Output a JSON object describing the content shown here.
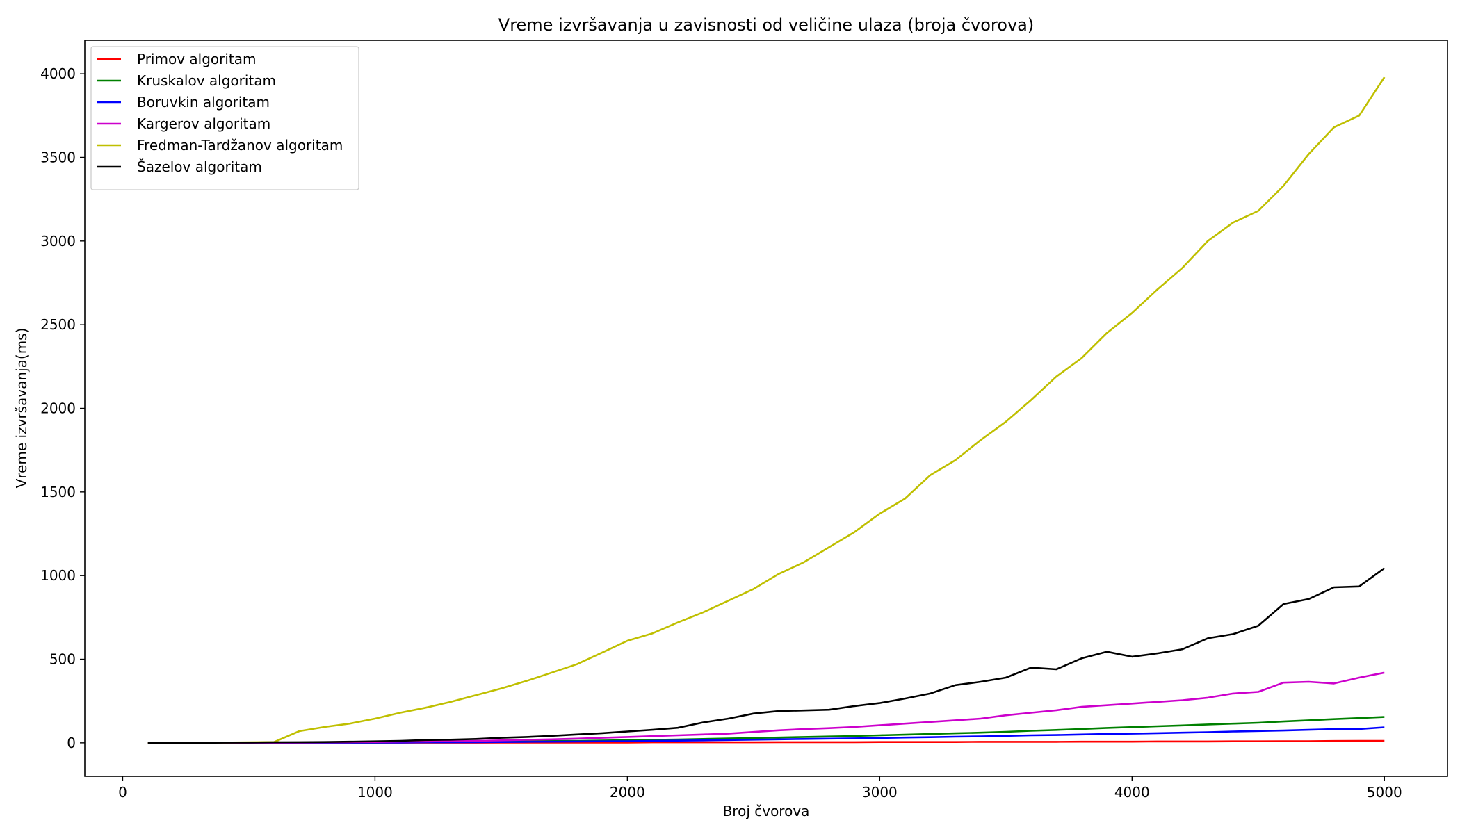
{
  "chart_data": {
    "type": "line",
    "title": "Vreme izvršavanja u zavisnosti od veličine ulaza (broja čvorova)",
    "xlabel": "Broj čvorova",
    "ylabel": "Vreme izvršavanja(ms)",
    "xlim": [
      -150,
      5250
    ],
    "ylim": [
      -200,
      4200
    ],
    "xticks": [
      0,
      1000,
      2000,
      3000,
      4000,
      5000
    ],
    "yticks": [
      0,
      500,
      1000,
      1500,
      2000,
      2500,
      3000,
      3500,
      4000
    ],
    "grid": false,
    "legend_position": "top-left",
    "x": [
      100,
      200,
      300,
      400,
      500,
      600,
      700,
      800,
      900,
      1000,
      1100,
      1200,
      1300,
      1400,
      1500,
      1600,
      1700,
      1800,
      1900,
      2000,
      2100,
      2200,
      2300,
      2400,
      2500,
      2600,
      2700,
      2800,
      2900,
      3000,
      3100,
      3200,
      3300,
      3400,
      3500,
      3600,
      3700,
      3800,
      3900,
      4000,
      4100,
      4200,
      4300,
      4400,
      4500,
      4600,
      4700,
      4800,
      4900,
      5000
    ],
    "series": [
      {
        "name": "Primov algoritam",
        "color": "#ff0000",
        "values": [
          0,
          0,
          0,
          0,
          0,
          0,
          1,
          1,
          1,
          1,
          1,
          1,
          1,
          1,
          2,
          2,
          2,
          2,
          2,
          2,
          3,
          3,
          3,
          3,
          3,
          4,
          4,
          4,
          4,
          5,
          5,
          5,
          5,
          6,
          6,
          6,
          6,
          7,
          7,
          7,
          8,
          8,
          8,
          9,
          9,
          10,
          10,
          11,
          12,
          12
        ]
      },
      {
        "name": "Kruskalov algoritam",
        "color": "#008000",
        "values": [
          0,
          0,
          0,
          0,
          0,
          1,
          1,
          1,
          2,
          2,
          3,
          4,
          5,
          6,
          8,
          9,
          11,
          12,
          14,
          16,
          18,
          20,
          23,
          26,
          29,
          32,
          35,
          38,
          41,
          45,
          49,
          53,
          57,
          61,
          66,
          72,
          77,
          83,
          89,
          94,
          99,
          104,
          110,
          115,
          120,
          128,
          135,
          142,
          148,
          155
        ]
      },
      {
        "name": "Boruvkin algoritam",
        "color": "#0000ff",
        "values": [
          0,
          0,
          0,
          0,
          0,
          0,
          1,
          1,
          1,
          2,
          2,
          3,
          3,
          4,
          5,
          6,
          7,
          8,
          9,
          10,
          12,
          13,
          15,
          17,
          19,
          21,
          23,
          25,
          27,
          29,
          32,
          34,
          37,
          39,
          42,
          45,
          47,
          50,
          53,
          55,
          58,
          61,
          64,
          68,
          71,
          74,
          78,
          82,
          83,
          93
        ]
      },
      {
        "name": "Kargerov algoritam",
        "color": "#cc00cc",
        "values": [
          0,
          0,
          0,
          0,
          1,
          1,
          2,
          3,
          4,
          5,
          7,
          8,
          10,
          12,
          15,
          18,
          21,
          25,
          30,
          35,
          40,
          45,
          50,
          55,
          65,
          75,
          82,
          88,
          95,
          105,
          115,
          125,
          135,
          145,
          165,
          180,
          195,
          215,
          225,
          235,
          245,
          255,
          270,
          295,
          305,
          360,
          365,
          355,
          390,
          420
        ]
      },
      {
        "name": "Fredman-Tardžanov algoritam",
        "color": "#bfbf00",
        "values": [
          0,
          0,
          1,
          2,
          3,
          5,
          70,
          95,
          115,
          145,
          180,
          210,
          245,
          285,
          325,
          370,
          420,
          470,
          540,
          610,
          655,
          720,
          780,
          850,
          920,
          1010,
          1080,
          1170,
          1260,
          1370,
          1460,
          1600,
          1690,
          1810,
          1920,
          2050,
          2190,
          2300,
          2450,
          2570,
          2710,
          2840,
          3000,
          3110,
          3180,
          3330,
          3520,
          3680,
          3750,
          3980
        ]
      },
      {
        "name": "Šazelov algoritam",
        "color": "#000000",
        "values": [
          0,
          0,
          0,
          1,
          2,
          3,
          4,
          5,
          7,
          9,
          12,
          17,
          19,
          23,
          30,
          35,
          42,
          50,
          58,
          68,
          78,
          90,
          122,
          145,
          175,
          190,
          194,
          198,
          220,
          238,
          265,
          295,
          345,
          365,
          390,
          450,
          440,
          505,
          545,
          515,
          535,
          560,
          625,
          650,
          700,
          830,
          860,
          930,
          935,
          1045
        ]
      }
    ]
  }
}
